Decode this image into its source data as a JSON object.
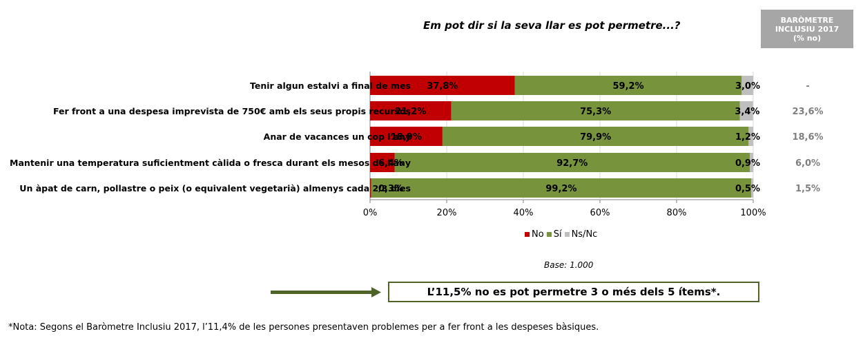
{
  "title": "Em pot dir si la seva llar es pot permetre...?",
  "barometre": {
    "line1": "BARÒMETRE",
    "line2": "INCLUSIU 2017",
    "line3": "(% no)"
  },
  "chart_data": {
    "type": "bar",
    "orientation": "horizontal",
    "stacked": true,
    "categories": [
      "Tenir algun estalvi a final de mes",
      "Fer front a una despesa imprevista de 750€ amb els seus propis recursos",
      "Anar de vacances un cop l'any",
      "Mantenir una temperatura suficientment càlida o fresca durant els mesos de l'any",
      "Un àpat de carn, pollastre o peix (o equivalent vegetarià) almenys cada 2/3 dies"
    ],
    "series": [
      {
        "name": "No",
        "color": "#c00000",
        "values": [
          37.8,
          21.2,
          18.9,
          6.4,
          0.3
        ],
        "labels": [
          "37,8%",
          "21,2%",
          "18,9%",
          "6,4%",
          "0,3%"
        ]
      },
      {
        "name": "Sí",
        "color": "#77933c",
        "values": [
          59.2,
          75.3,
          79.9,
          92.7,
          99.2
        ],
        "labels": [
          "59,2%",
          "75,3%",
          "79,9%",
          "92,7%",
          "99,2%"
        ]
      },
      {
        "name": "Ns/Nc",
        "color": "#bfbfbf",
        "values": [
          3.0,
          3.4,
          1.2,
          0.9,
          0.5
        ],
        "labels": [
          "3,0%",
          "3,4%",
          "1,2%",
          "0,9%",
          "0,5%"
        ]
      }
    ],
    "barometre_values": [
      "-",
      "23,6%",
      "18,6%",
      "6,0%",
      "1,5%"
    ],
    "xlim": [
      0,
      100
    ],
    "xticks": [
      "0%",
      "20%",
      "40%",
      "60%",
      "80%",
      "100%"
    ],
    "legend": "bottom-center"
  },
  "base": "Base: 1.000",
  "callout": "L’11,5% no es pot permetre 3 o més dels 5 ítems*.",
  "note": "*Nota: Segons el Baròmetre Inclusiu 2017, l’11,4% de les persones presentaven problemes per a fer front a les despeses bàsiques."
}
